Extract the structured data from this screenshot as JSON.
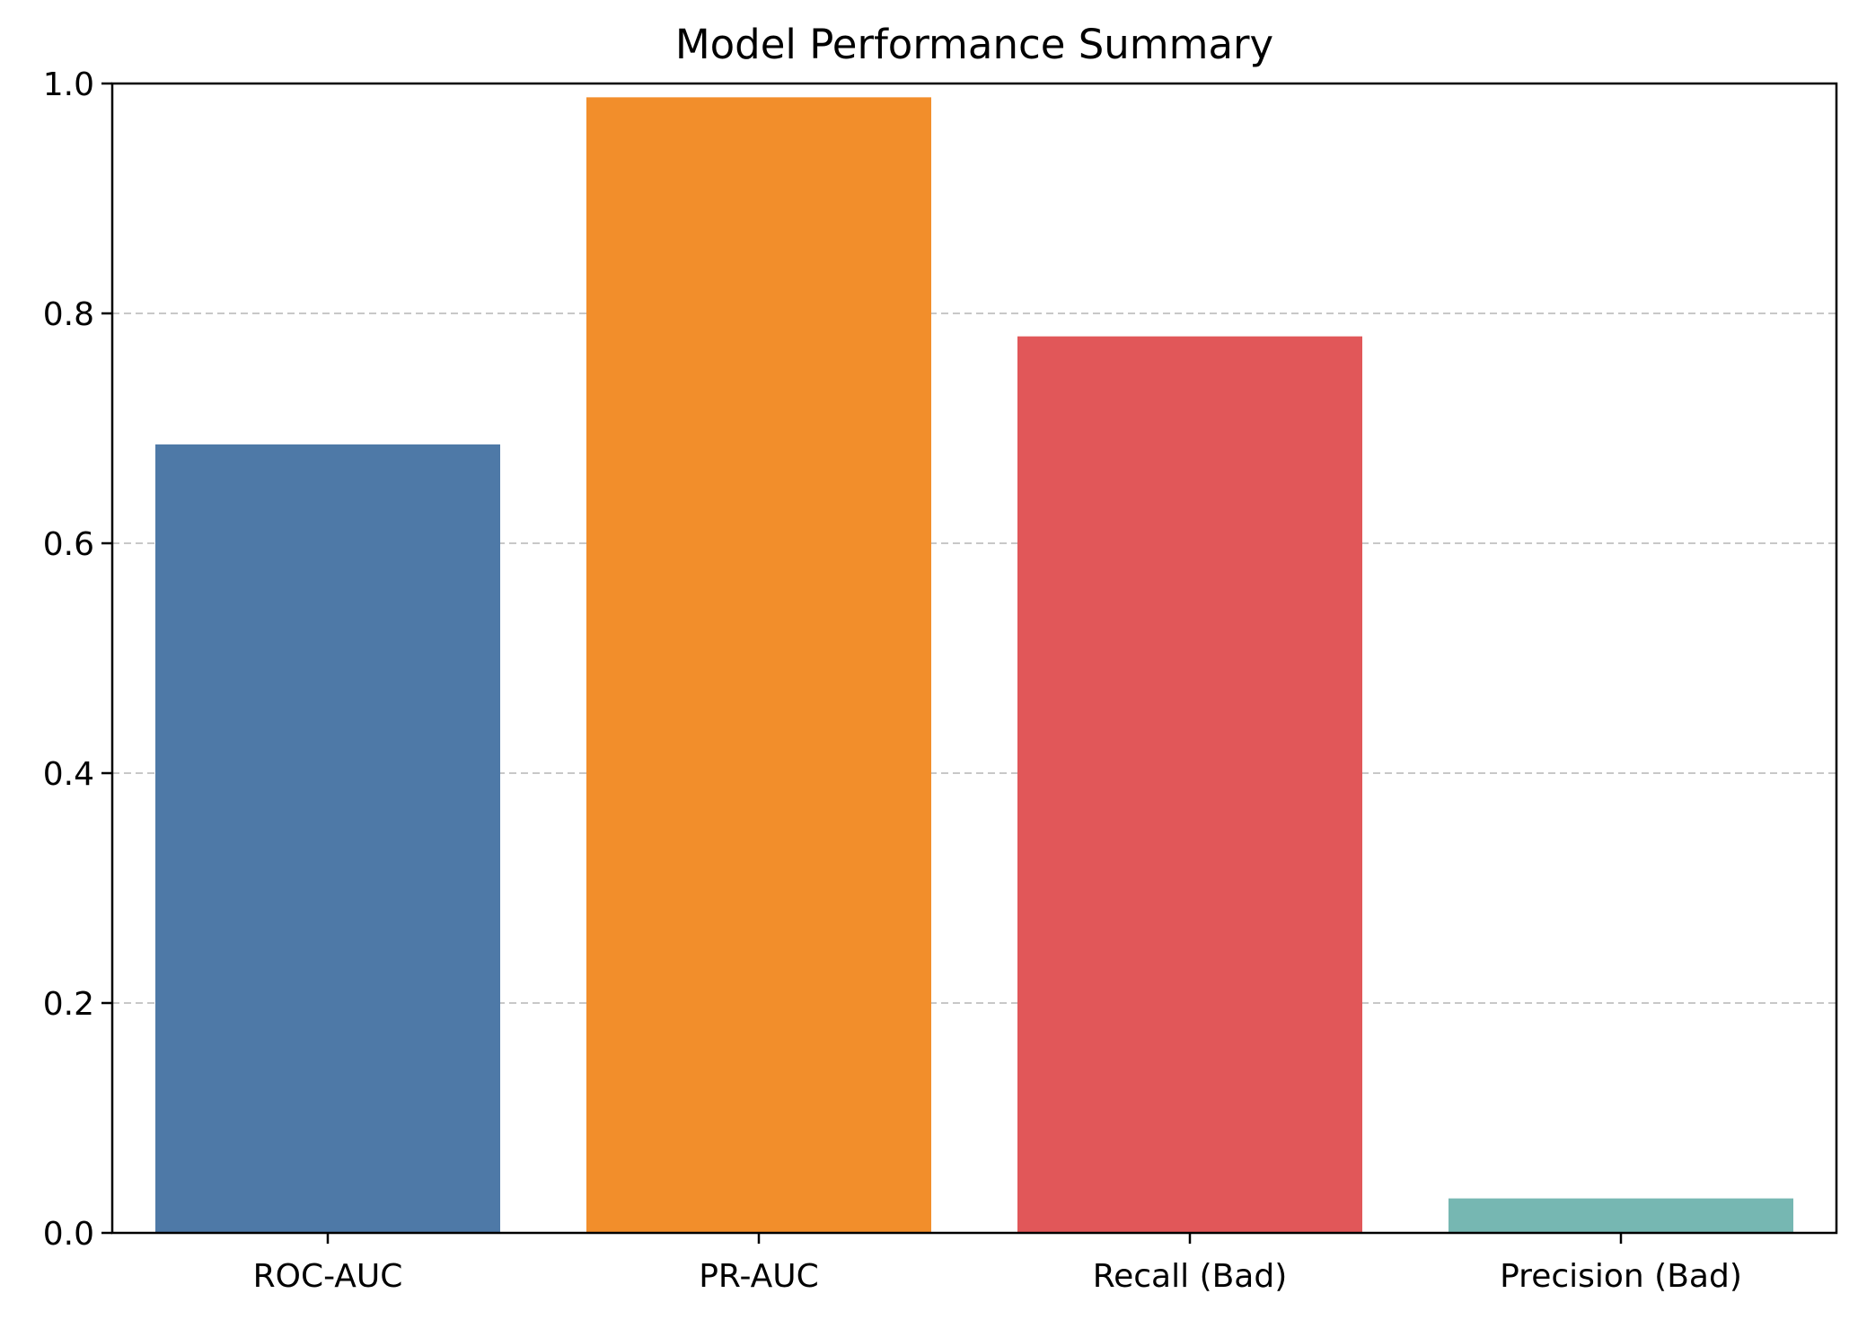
{
  "chart_data": {
    "type": "bar",
    "title": "Model Performance Summary",
    "xlabel": "",
    "ylabel": "",
    "categories": [
      "ROC-AUC",
      "PR-AUC",
      "Recall (Bad)",
      "Precision (Bad)"
    ],
    "values": [
      0.686,
      0.988,
      0.78,
      0.03
    ],
    "colors": [
      "#4e79a7",
      "#f28e2b",
      "#e15759",
      "#76b7b2"
    ],
    "ylim": [
      0,
      1.0
    ],
    "yticks": [
      "0.0",
      "0.2",
      "0.4",
      "0.6",
      "0.8",
      "1.0"
    ],
    "grid": {
      "axis": "y",
      "style": "dashed",
      "color": "#c8c8c8"
    },
    "legend": "none"
  }
}
